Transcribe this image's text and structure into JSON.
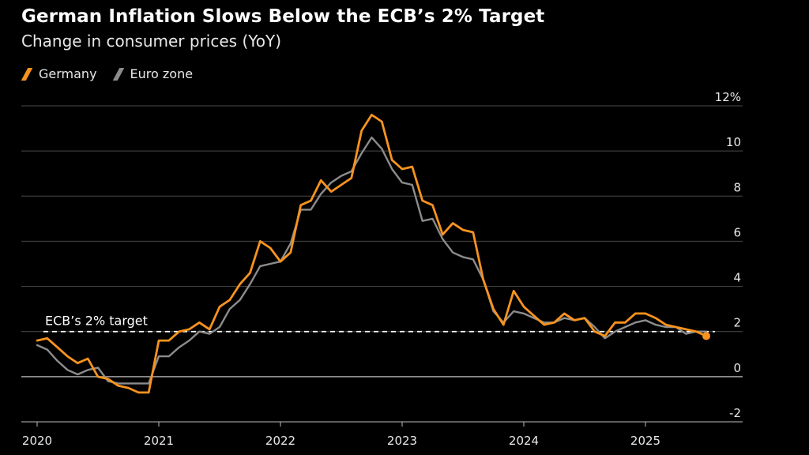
{
  "title": "German Inflation Slows Below the ECB’s 2% Target",
  "subtitle": "Change in consumer prices (YoY)",
  "legend": [
    {
      "name": "Germany",
      "color": "#f7931e"
    },
    {
      "name": "Euro zone",
      "color": "#8c8c8c"
    }
  ],
  "chart_data": {
    "type": "line",
    "title": "German Inflation Slows Below the ECB’s 2% Target",
    "subtitle": "Change in consumer prices (YoY)",
    "xlabel": "",
    "ylabel": "",
    "x_start": "2020-01",
    "x_ticks": [
      "2020",
      "2021",
      "2022",
      "2023",
      "2024",
      "2025"
    ],
    "y_ticks": [
      "12%",
      "10",
      "8",
      "6",
      "4",
      "2",
      "0",
      "-2"
    ],
    "ylim": [
      -2,
      12
    ],
    "grid": true,
    "legend_position": "top-left",
    "reference_line": {
      "label": "ECB’s 2% target",
      "value": 2
    },
    "series": [
      {
        "name": "Germany",
        "color": "#f7931e",
        "values": [
          1.6,
          1.7,
          1.3,
          0.9,
          0.6,
          0.8,
          0.0,
          -0.1,
          -0.4,
          -0.5,
          -0.7,
          -0.7,
          1.6,
          1.6,
          2.0,
          2.1,
          2.4,
          2.1,
          3.1,
          3.4,
          4.1,
          4.6,
          6.0,
          5.7,
          5.1,
          5.5,
          7.6,
          7.8,
          8.7,
          8.2,
          8.5,
          8.8,
          10.9,
          11.6,
          11.3,
          9.6,
          9.2,
          9.3,
          7.8,
          7.6,
          6.3,
          6.8,
          6.5,
          6.4,
          4.3,
          3.0,
          2.3,
          3.8,
          3.1,
          2.7,
          2.3,
          2.4,
          2.8,
          2.5,
          2.6,
          2.0,
          1.8,
          2.4,
          2.4,
          2.8,
          2.8,
          2.6,
          2.3,
          2.2,
          2.1,
          2.0,
          1.8
        ]
      },
      {
        "name": "Euro zone",
        "color": "#8c8c8c",
        "values": [
          1.4,
          1.2,
          0.7,
          0.3,
          0.1,
          0.3,
          0.4,
          -0.2,
          -0.3,
          -0.3,
          -0.3,
          -0.3,
          0.9,
          0.9,
          1.3,
          1.6,
          2.0,
          1.9,
          2.2,
          3.0,
          3.4,
          4.1,
          4.9,
          5.0,
          5.1,
          5.9,
          7.4,
          7.4,
          8.1,
          8.6,
          8.9,
          9.1,
          9.9,
          10.6,
          10.1,
          9.2,
          8.6,
          8.5,
          6.9,
          7.0,
          6.1,
          5.5,
          5.3,
          5.2,
          4.3,
          2.9,
          2.4,
          2.9,
          2.8,
          2.6,
          2.4,
          2.4,
          2.6,
          2.5,
          2.6,
          2.2,
          1.7,
          2.0,
          2.2,
          2.4,
          2.5,
          2.3,
          2.2,
          2.2,
          1.9,
          2.0,
          2.0
        ]
      }
    ]
  }
}
